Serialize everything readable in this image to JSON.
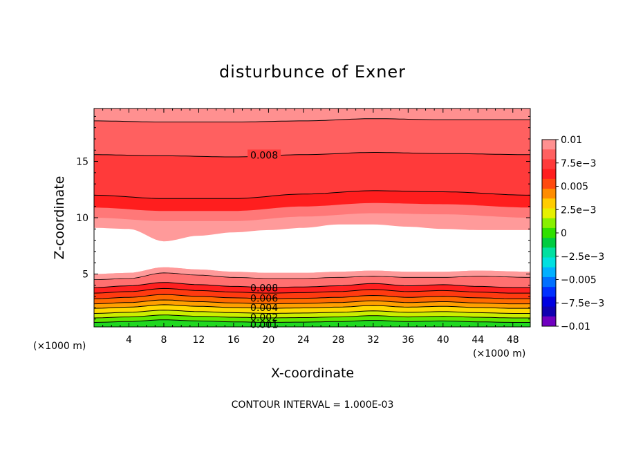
{
  "chart_data": {
    "type": "contour",
    "title": "disturbunce of Exner",
    "xlabel": "X-coordinate",
    "ylabel": "Z-coordinate",
    "x_unit_label": "(×1000 m)",
    "y_unit_label": "(×1000 m)",
    "xlim": [
      0,
      50
    ],
    "ylim": [
      0.3,
      19.7
    ],
    "x_ticks": [
      4,
      8,
      12,
      16,
      20,
      24,
      28,
      32,
      36,
      40,
      44,
      48
    ],
    "y_ticks": [
      5,
      10,
      15
    ],
    "footer": "CONTOUR INTERVAL = 1.000E-03",
    "contour_interval": 0.001,
    "contour_labels": [
      {
        "text": "0.008",
        "x": 19.5,
        "y": 15.5
      },
      {
        "text": "0.008",
        "x": 19.5,
        "y": 3.7
      },
      {
        "text": "0.006",
        "x": 19.5,
        "y": 2.8
      },
      {
        "text": "0.004",
        "x": 19.5,
        "y": 1.95
      },
      {
        "text": "0.002",
        "x": 19.5,
        "y": 1.1
      },
      {
        "text": "0.001",
        "x": 19.5,
        "y": 0.45
      }
    ],
    "upper_contours": [
      {
        "level": 0.009,
        "x": [
          0,
          8,
          16,
          24,
          32,
          40,
          50
        ],
        "y": [
          18.6,
          18.5,
          18.5,
          18.6,
          18.8,
          18.7,
          18.7
        ]
      },
      {
        "level": 0.008,
        "x": [
          0,
          8,
          16,
          24,
          32,
          40,
          50
        ],
        "y": [
          15.6,
          15.5,
          15.4,
          15.6,
          15.8,
          15.7,
          15.6
        ]
      },
      {
        "level": 0.007,
        "x": [
          0,
          8,
          16,
          24,
          32,
          40,
          50
        ],
        "y": [
          12.0,
          11.7,
          11.7,
          12.1,
          12.4,
          12.3,
          12.0
        ]
      }
    ],
    "zero_region": {
      "top_x": [
        0,
        4,
        8,
        12,
        16,
        20,
        24,
        28,
        32,
        36,
        40,
        44,
        50
      ],
      "top_y": [
        9.1,
        9.0,
        7.9,
        8.4,
        8.7,
        8.9,
        9.1,
        9.4,
        9.4,
        9.2,
        9.0,
        8.9,
        8.9
      ],
      "bottom_x": [
        0,
        4,
        8,
        12,
        16,
        20,
        24,
        28,
        32,
        36,
        40,
        44,
        50
      ],
      "bottom_y": [
        5.0,
        5.1,
        5.6,
        5.4,
        5.2,
        5.1,
        5.1,
        5.2,
        5.3,
        5.2,
        5.2,
        5.3,
        5.2
      ]
    },
    "lower_contour_levels": [
      0.008,
      0.007,
      0.006,
      0.005,
      0.004,
      0.003,
      0.002,
      0.001
    ],
    "lower_contour_heights": [
      3.8,
      3.3,
      2.8,
      2.35,
      1.95,
      1.5,
      1.1,
      0.7
    ],
    "lower_contour_wave": {
      "x": [
        0,
        4,
        8,
        12,
        16,
        20,
        24,
        28,
        32,
        36,
        40,
        44,
        48,
        50
      ],
      "dy": [
        0.0,
        0.15,
        0.45,
        0.25,
        0.1,
        0.0,
        0.05,
        0.15,
        0.35,
        0.15,
        0.25,
        0.1,
        0.0,
        0.0
      ]
    },
    "colorbar": {
      "tick_labels": [
        "0.01",
        "7.5e−3",
        "0.005",
        "2.5e−3",
        "0",
        "−2.5e−3",
        "−0.005",
        "−7.5e−3",
        "−0.01"
      ],
      "tick_values": [
        0.01,
        0.0075,
        0.005,
        0.0025,
        0,
        -0.0025,
        -0.005,
        -0.0075,
        -0.01
      ],
      "range": [
        -0.01,
        0.01
      ],
      "colors_top_to_bottom": [
        "#ff9090",
        "#ff6060",
        "#ff3a3a",
        "#ff1e1e",
        "#ff4a10",
        "#ff8c00",
        "#ffcc00",
        "#e6f000",
        "#88f000",
        "#30e000",
        "#00cc40",
        "#00e0a0",
        "#00e0e0",
        "#00b0ff",
        "#0070ff",
        "#0030ff",
        "#0000e0",
        "#1000b0",
        "#7000c0"
      ]
    },
    "band_colors": {
      "0.010": "#ff9090",
      "0.009": "#ff6060",
      "0.008": "#ff3a3a",
      "0.007": "#ff1e1e",
      "0.006": "#ff4a10",
      "0.005": "#ff8c00",
      "0.004": "#ffcc00",
      "0.003": "#e6f000",
      "0.002": "#88f000",
      "0.001": "#30e000",
      "0.000": "#ffffff"
    }
  }
}
